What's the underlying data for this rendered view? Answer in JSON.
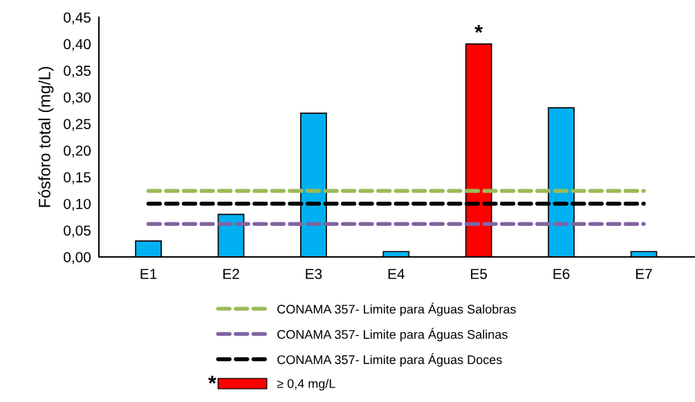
{
  "chart_data": {
    "type": "bar",
    "ylabel": "Fósforo total (mg/L)",
    "categories": [
      "E1",
      "E2",
      "E3",
      "E4",
      "E5",
      "E6",
      "E7"
    ],
    "series": [
      {
        "color": "#00b0f0",
        "values": [
          0.03,
          0.08,
          0.27,
          0.01,
          null,
          0.28,
          0.01
        ]
      },
      {
        "name": "≥ 0,4 mg/L",
        "color": "#ff0000",
        "values": [
          null,
          null,
          null,
          null,
          0.4,
          null,
          null
        ]
      },
      {
        "type": "line",
        "name": "CONAMA 357- Limite para Águas Salobras",
        "color": "#9bbb59",
        "line_style": "dashed",
        "values": [
          0.124,
          0.124,
          0.124,
          0.124,
          0.124,
          0.124,
          0.124
        ]
      },
      {
        "type": "line",
        "name": "CONAMA 357- Limite para Águas Salinas",
        "color": "#8064a2",
        "line_style": "dashed",
        "values": [
          0.062,
          0.062,
          0.062,
          0.062,
          0.062,
          0.062,
          0.062
        ]
      },
      {
        "type": "line",
        "name": "CONAMA 357- Limite para Águas Doces",
        "color": "#000000",
        "line_style": "dashed",
        "values": [
          0.1,
          0.1,
          0.1,
          0.1,
          0.1,
          0.1,
          0.1
        ]
      }
    ],
    "ylim": [
      0,
      0.45
    ],
    "yticks": [
      {
        "value": 0,
        "label": "0,00"
      },
      {
        "value": 0.05,
        "label": "0,05"
      },
      {
        "value": 0.1,
        "label": "0,10"
      },
      {
        "value": 0.15,
        "label": "0,15"
      },
      {
        "value": 0.2,
        "label": "0,20"
      },
      {
        "value": 0.25,
        "label": "0,25"
      },
      {
        "value": 0.3,
        "label": "0,30"
      },
      {
        "value": 0.35,
        "label": "0,35"
      },
      {
        "value": 0.4,
        "label": "0,40"
      },
      {
        "value": 0.45,
        "label": "0,45"
      }
    ],
    "annotations": [
      {
        "text": "*",
        "x": "E5",
        "y": 0.4
      },
      "*"
    ],
    "grid": false,
    "legend": "bottom"
  }
}
